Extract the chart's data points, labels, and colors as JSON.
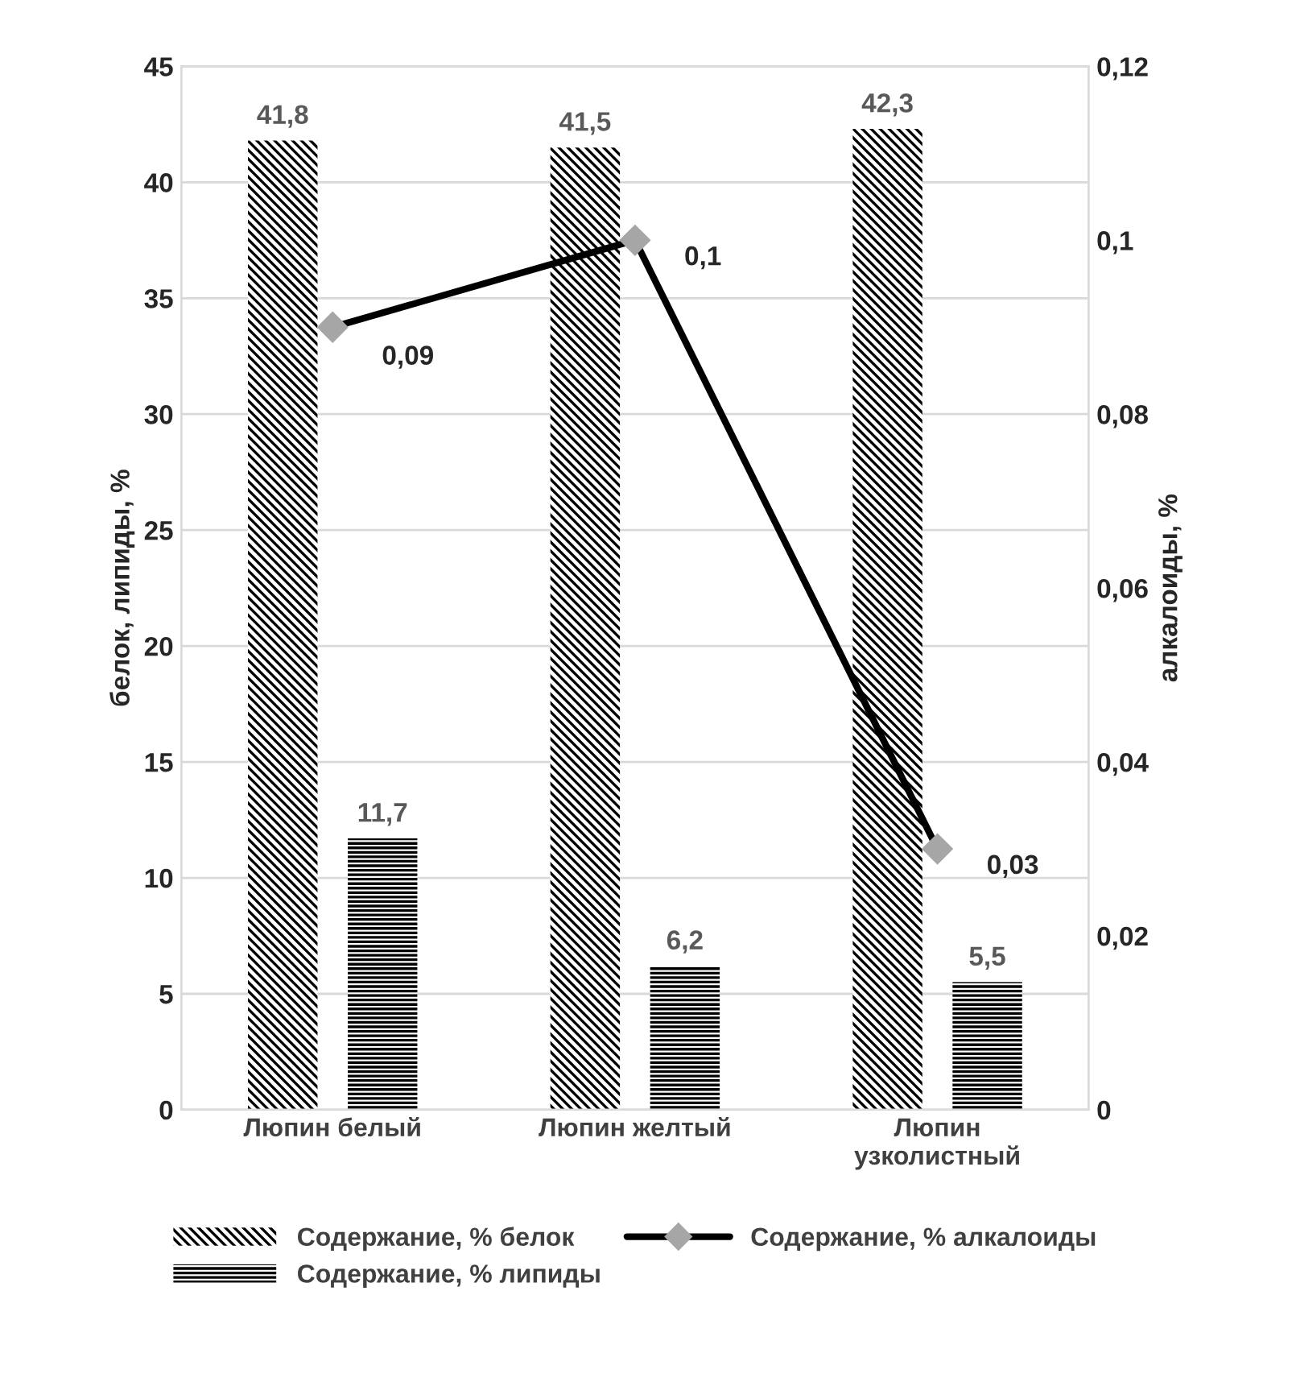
{
  "chart_data": {
    "type": "bar",
    "categories": [
      "Люпин белый",
      "Люпин желтый",
      "Люпин\nузколистный"
    ],
    "ylabel": "белок, липиды, %",
    "y2label": "алкалоиды, %",
    "ylim": [
      0,
      45
    ],
    "yticks": [
      0,
      5,
      10,
      15,
      20,
      25,
      30,
      35,
      40,
      45
    ],
    "y2lim": [
      0,
      0.12
    ],
    "y2ticks": [
      {
        "value": 0,
        "label": "0"
      },
      {
        "value": 0.02,
        "label": "0,02"
      },
      {
        "value": 0.04,
        "label": "0,04"
      },
      {
        "value": 0.06,
        "label": "0,06"
      },
      {
        "value": 0.08,
        "label": "0,08"
      },
      {
        "value": 0.1,
        "label": "0,1"
      },
      {
        "value": 0.12,
        "label": "0,12"
      }
    ],
    "grid": "y",
    "legend": "bottom",
    "series": [
      {
        "name": "Содержание, % белок",
        "color": "#000000",
        "values": [
          41.8,
          41.5,
          42.3
        ],
        "value_labels": [
          "41,8",
          "41,5",
          "42,3"
        ]
      },
      {
        "name": "Содержание, % липиды",
        "color": "#000000",
        "values": [
          11.7,
          6.2,
          5.5
        ],
        "value_labels": [
          "11,7",
          "6,2",
          "5,5"
        ]
      },
      {
        "name": "Содержание, % алкалоиды",
        "type": "line",
        "axis": "y2",
        "color": "#000000",
        "marker": "diamond",
        "line_style": "solid",
        "values": [
          0.09,
          0.1,
          0.03
        ],
        "value_labels": [
          "0,09",
          "0,1",
          "0,03"
        ]
      }
    ]
  }
}
